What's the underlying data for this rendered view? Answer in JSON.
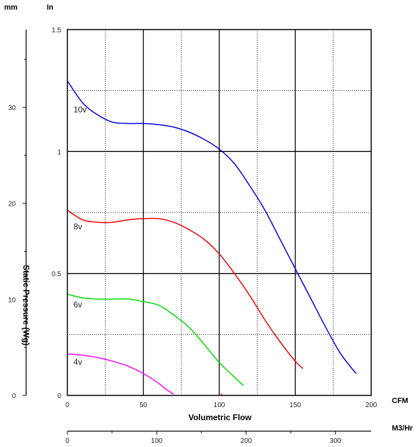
{
  "chart_data": {
    "type": "line",
    "xlabel": "Volumetric Flow",
    "ylabel": "Static Pressure (Wg)",
    "x_unit": "CFM",
    "x2_unit": "M3/Hr",
    "y_unit": "In",
    "y2_unit": "mm",
    "xlim": [
      0,
      200
    ],
    "ylim": [
      0,
      1.5
    ],
    "x_ticks": [
      "0",
      "50",
      "100",
      "150",
      "200"
    ],
    "y_ticks": [
      "0",
      "0.5",
      "1",
      "1.5"
    ],
    "x2_ticks": [
      "0",
      "100",
      "200",
      "300"
    ],
    "x2_lim": [
      0,
      340
    ],
    "y2_ticks": [
      "0",
      "10",
      "20",
      "30"
    ],
    "y2_lim": [
      0,
      38.1
    ],
    "grid": true,
    "series": [
      {
        "name": "10v",
        "color": "#0000dd",
        "x": [
          0,
          10,
          20,
          30,
          40,
          50,
          60,
          70,
          80,
          90,
          100,
          110,
          120,
          130,
          140,
          150,
          160,
          170,
          180,
          190
        ],
        "y": [
          1.29,
          1.2,
          1.15,
          1.12,
          1.115,
          1.115,
          1.11,
          1.1,
          1.08,
          1.05,
          1.01,
          0.95,
          0.86,
          0.76,
          0.64,
          0.52,
          0.4,
          0.28,
          0.17,
          0.09
        ]
      },
      {
        "name": "8v",
        "color": "#ee0000",
        "x": [
          0,
          10,
          20,
          30,
          40,
          50,
          60,
          70,
          80,
          90,
          100,
          110,
          120,
          130,
          140,
          150,
          155
        ],
        "y": [
          0.76,
          0.72,
          0.71,
          0.71,
          0.72,
          0.725,
          0.725,
          0.71,
          0.68,
          0.64,
          0.58,
          0.5,
          0.41,
          0.31,
          0.22,
          0.14,
          0.11
        ]
      },
      {
        "name": "6v",
        "color": "#00dd00",
        "x": [
          0,
          10,
          20,
          30,
          40,
          50,
          60,
          70,
          80,
          90,
          100,
          110,
          116
        ],
        "y": [
          0.415,
          0.4,
          0.395,
          0.395,
          0.395,
          0.385,
          0.37,
          0.33,
          0.28,
          0.21,
          0.135,
          0.075,
          0.04
        ]
      },
      {
        "name": "4v",
        "color": "#ff00ff",
        "x": [
          0,
          10,
          20,
          30,
          40,
          50,
          60,
          65,
          70
        ],
        "y": [
          0.17,
          0.165,
          0.155,
          0.14,
          0.12,
          0.09,
          0.05,
          0.025,
          0.005
        ]
      },
      {
        "name": "",
        "color": "#ff00ff",
        "x": [
          101,
          102
        ],
        "y": [
          0.008,
          0.0
        ]
      }
    ]
  }
}
